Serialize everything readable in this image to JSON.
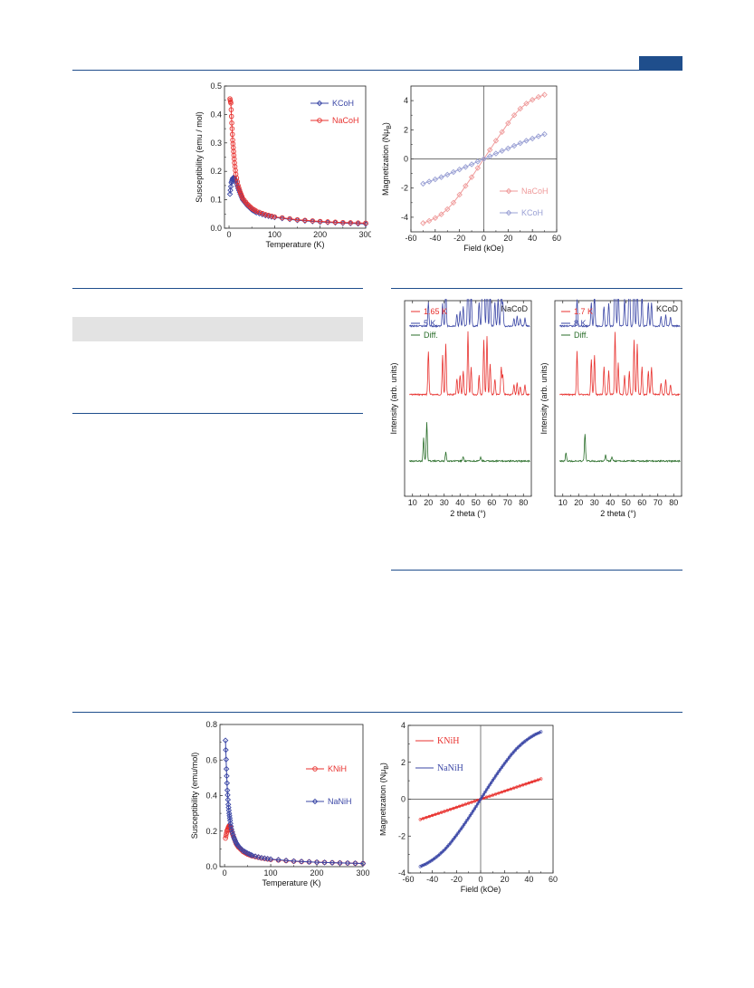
{
  "colors": {
    "blue": "#3b47a6",
    "red": "#e8322f",
    "pink": "#ef9a9a",
    "lavender": "#9aa0d4",
    "green": "#2a6e2a",
    "rule": "#1f4e8c"
  },
  "chart_data": [
    {
      "id": "chi-co",
      "type": "line",
      "xlabel": "Temperature (K)",
      "ylabel": "Susceptibility (emu / mol)",
      "xlim": [
        -10,
        300
      ],
      "ylim": [
        0,
        0.5
      ],
      "xticks": [
        "0",
        "100",
        "200",
        "300"
      ],
      "yticks": [
        "0.0",
        "0.1",
        "0.2",
        "0.3",
        "0.4",
        "0.5"
      ],
      "legend_position": "top-right",
      "series": [
        {
          "name": "KCoH",
          "color": "#3b47a6",
          "marker": "open-diamond",
          "x": [
            2,
            5,
            8,
            10,
            12,
            15,
            20,
            25,
            30,
            40,
            50,
            60,
            80,
            100,
            150,
            200,
            250,
            300
          ],
          "y": [
            0.12,
            0.16,
            0.175,
            0.178,
            0.176,
            0.165,
            0.14,
            0.12,
            0.1,
            0.08,
            0.065,
            0.055,
            0.045,
            0.038,
            0.028,
            0.022,
            0.018,
            0.015
          ]
        },
        {
          "name": "NaCoH",
          "color": "#e8322f",
          "marker": "open-circle",
          "x": [
            2,
            4,
            6,
            8,
            10,
            12,
            15,
            20,
            25,
            30,
            40,
            50,
            60,
            80,
            100,
            150,
            200,
            250,
            300
          ],
          "y": [
            0.455,
            0.44,
            0.37,
            0.31,
            0.27,
            0.23,
            0.19,
            0.15,
            0.125,
            0.105,
            0.085,
            0.07,
            0.06,
            0.048,
            0.04,
            0.03,
            0.024,
            0.02,
            0.018
          ]
        }
      ]
    },
    {
      "id": "mh-co",
      "type": "scatter",
      "xlabel": "Field (kOe)",
      "ylabel": "Magnetization (NμB)",
      "ylabel_main": "Magnetization (Nμ",
      "ylabel_sub": "B",
      "ylabel_end": ")",
      "xlim": [
        -60,
        60
      ],
      "ylim": [
        -5,
        5
      ],
      "xticks": [
        "-60",
        "-40",
        "-20",
        "0",
        "20",
        "40",
        "60"
      ],
      "yticks": [
        "-4",
        "-2",
        "0",
        "2",
        "4"
      ],
      "legend_position": "bottom-right",
      "series": [
        {
          "name": "NaCoH",
          "color": "#ef9a9a",
          "marker": "open-diamond",
          "x": [
            -50,
            -45,
            -40,
            -35,
            -30,
            -25,
            -20,
            -15,
            -10,
            -5,
            0,
            5,
            10,
            15,
            20,
            25,
            30,
            35,
            40,
            45,
            50
          ],
          "y": [
            -4.4,
            -4.25,
            -4.05,
            -3.8,
            -3.45,
            -3.0,
            -2.45,
            -1.85,
            -1.25,
            -0.62,
            0,
            0.62,
            1.25,
            1.85,
            2.45,
            3.0,
            3.45,
            3.8,
            4.05,
            4.25,
            4.4
          ]
        },
        {
          "name": "KCoH",
          "color": "#9aa0d4",
          "marker": "open-diamond",
          "x": [
            -50,
            -45,
            -40,
            -35,
            -30,
            -25,
            -20,
            -15,
            -10,
            -5,
            0,
            5,
            10,
            15,
            20,
            25,
            30,
            35,
            40,
            45,
            50
          ],
          "y": [
            -1.7,
            -1.55,
            -1.4,
            -1.25,
            -1.08,
            -0.9,
            -0.72,
            -0.55,
            -0.37,
            -0.18,
            0,
            0.18,
            0.37,
            0.55,
            0.72,
            0.9,
            1.08,
            1.25,
            1.4,
            1.55,
            1.7
          ]
        }
      ]
    },
    {
      "id": "nd-nacod",
      "type": "line",
      "panel_label": "NaCoD",
      "xlabel": "2 theta (°)",
      "ylabel": "Intensity (arb. units)",
      "xlim": [
        5,
        85
      ],
      "xticks": [
        "10",
        "20",
        "30",
        "40",
        "50",
        "60",
        "70",
        "80"
      ],
      "legend_position": "top-left",
      "series": [
        {
          "name": "1.65 K",
          "color": "#e8322f",
          "baseline": 0.48,
          "peaks": [
            [
              20,
              0.22
            ],
            [
              29,
              0.2
            ],
            [
              31,
              0.26
            ],
            [
              38,
              0.08
            ],
            [
              40,
              0.1
            ],
            [
              42,
              0.12
            ],
            [
              45,
              0.32
            ],
            [
              47,
              0.14
            ],
            [
              52,
              0.1
            ],
            [
              55,
              0.28
            ],
            [
              57,
              0.3
            ],
            [
              59,
              0.16
            ],
            [
              62,
              0.08
            ],
            [
              66,
              0.14
            ],
            [
              67,
              0.1
            ],
            [
              74,
              0.05
            ],
            [
              76,
              0.06
            ],
            [
              78,
              0.04
            ],
            [
              81,
              0.05
            ]
          ]
        },
        {
          "name": "5 K",
          "color": "#3b47a6",
          "baseline": 0.13,
          "peaks": [
            [
              20,
              0.12
            ],
            [
              29,
              0.12
            ],
            [
              31,
              0.2
            ],
            [
              38,
              0.06
            ],
            [
              40,
              0.08
            ],
            [
              42,
              0.1
            ],
            [
              45,
              0.3
            ],
            [
              47,
              0.18
            ],
            [
              52,
              0.12
            ],
            [
              54,
              0.18
            ],
            [
              55,
              0.55
            ],
            [
              57,
              0.32
            ],
            [
              59,
              0.18
            ],
            [
              62,
              0.12
            ],
            [
              64,
              0.14
            ],
            [
              66,
              0.2
            ],
            [
              67,
              0.12
            ],
            [
              74,
              0.04
            ],
            [
              76,
              0.05
            ],
            [
              78,
              0.04
            ],
            [
              81,
              0.04
            ]
          ]
        },
        {
          "name": "Diff.",
          "color": "#2a6e2a",
          "baseline": 0.82,
          "peaks": [
            [
              17,
              0.12
            ],
            [
              19,
              0.2
            ],
            [
              31,
              0.05
            ],
            [
              42,
              0.02
            ],
            [
              53,
              0.02
            ]
          ]
        }
      ]
    },
    {
      "id": "nd-kcod",
      "type": "line",
      "panel_label": "KCoD",
      "xlabel": "2 theta (°)",
      "ylabel": "Intensity (arb. units)",
      "xlim": [
        5,
        85
      ],
      "xticks": [
        "10",
        "20",
        "30",
        "40",
        "50",
        "60",
        "70",
        "80"
      ],
      "legend_position": "top-left",
      "series": [
        {
          "name": "1.7 K",
          "color": "#e8322f",
          "baseline": 0.48,
          "peaks": [
            [
              19,
              0.22
            ],
            [
              28,
              0.18
            ],
            [
              30,
              0.2
            ],
            [
              36,
              0.14
            ],
            [
              39,
              0.12
            ],
            [
              43,
              0.32
            ],
            [
              45,
              0.16
            ],
            [
              49,
              0.1
            ],
            [
              52,
              0.12
            ],
            [
              55,
              0.28
            ],
            [
              57,
              0.26
            ],
            [
              60,
              0.14
            ],
            [
              64,
              0.12
            ],
            [
              66,
              0.14
            ],
            [
              72,
              0.06
            ],
            [
              75,
              0.08
            ],
            [
              78,
              0.05
            ]
          ]
        },
        {
          "name": "8 K",
          "color": "#3b47a6",
          "baseline": 0.13,
          "peaks": [
            [
              19,
              0.14
            ],
            [
              28,
              0.12
            ],
            [
              30,
              0.16
            ],
            [
              36,
              0.1
            ],
            [
              39,
              0.12
            ],
            [
              43,
              0.55
            ],
            [
              45,
              0.22
            ],
            [
              49,
              0.14
            ],
            [
              52,
              0.38
            ],
            [
              55,
              0.26
            ],
            [
              57,
              0.24
            ],
            [
              60,
              0.16
            ],
            [
              64,
              0.12
            ],
            [
              66,
              0.12
            ],
            [
              72,
              0.05
            ],
            [
              75,
              0.06
            ],
            [
              78,
              0.05
            ]
          ]
        },
        {
          "name": "Diff.",
          "color": "#2a6e2a",
          "baseline": 0.82,
          "peaks": [
            [
              12,
              0.04
            ],
            [
              24,
              0.14
            ],
            [
              37,
              0.03
            ],
            [
              41,
              0.02
            ]
          ]
        }
      ]
    },
    {
      "id": "chi-ni",
      "type": "line",
      "xlabel": "Temperature (K)",
      "ylabel": "Susceptibility (emu/mol)",
      "xlim": [
        -10,
        300
      ],
      "ylim": [
        0,
        0.8
      ],
      "xticks": [
        "0",
        "100",
        "200",
        "300"
      ],
      "yticks": [
        "0.0",
        "0.2",
        "0.4",
        "0.6",
        "0.8"
      ],
      "legend_position": "right",
      "series": [
        {
          "name": "KNiH",
          "color": "#e8322f",
          "marker": "open-circle",
          "x": [
            2,
            5,
            8,
            10,
            12,
            15,
            20,
            25,
            30,
            40,
            50,
            60,
            80,
            100,
            150,
            200,
            250,
            300
          ],
          "y": [
            0.16,
            0.2,
            0.22,
            0.23,
            0.225,
            0.2,
            0.165,
            0.13,
            0.11,
            0.085,
            0.07,
            0.06,
            0.048,
            0.04,
            0.03,
            0.025,
            0.021,
            0.018
          ]
        },
        {
          "name": "NaNiH",
          "color": "#3b47a6",
          "marker": "open-diamond",
          "x": [
            2,
            4,
            6,
            8,
            10,
            12,
            15,
            20,
            25,
            30,
            40,
            50,
            60,
            80,
            100,
            150,
            200,
            250,
            300
          ],
          "y": [
            0.71,
            0.55,
            0.43,
            0.35,
            0.3,
            0.26,
            0.21,
            0.165,
            0.135,
            0.115,
            0.09,
            0.075,
            0.063,
            0.05,
            0.042,
            0.031,
            0.025,
            0.021,
            0.018
          ]
        }
      ]
    },
    {
      "id": "mh-ni",
      "type": "line",
      "xlabel": "Field (kOe)",
      "ylabel": "Magnetization (NμB)",
      "ylabel_main": "Magnetization (Nμ",
      "ylabel_sub": "B",
      "ylabel_end": ")",
      "xlim": [
        -60,
        60
      ],
      "ylim": [
        -4,
        4
      ],
      "xticks": [
        "-60",
        "-40",
        "-20",
        "0",
        "20",
        "40",
        "60"
      ],
      "yticks": [
        "-4",
        "-2",
        "0",
        "2",
        "4"
      ],
      "legend_position": "top-left",
      "series": [
        {
          "name": "KNiH",
          "color": "#e8322f",
          "x": [
            -50,
            -40,
            -30,
            -20,
            -10,
            0,
            10,
            20,
            30,
            40,
            50
          ],
          "y": [
            -1.1,
            -0.88,
            -0.66,
            -0.44,
            -0.22,
            0,
            0.22,
            0.44,
            0.66,
            0.88,
            1.1
          ]
        },
        {
          "name": "NaNiH",
          "color": "#3b47a6",
          "x": [
            -50,
            -45,
            -40,
            -35,
            -30,
            -25,
            -20,
            -15,
            -10,
            -5,
            0,
            5,
            10,
            15,
            20,
            25,
            30,
            35,
            40,
            45,
            50
          ],
          "y": [
            -3.65,
            -3.5,
            -3.3,
            -3.05,
            -2.75,
            -2.38,
            -1.95,
            -1.5,
            -1.02,
            -0.52,
            0,
            0.52,
            1.02,
            1.5,
            1.95,
            2.38,
            2.75,
            3.05,
            3.3,
            3.5,
            3.65
          ]
        }
      ]
    }
  ]
}
